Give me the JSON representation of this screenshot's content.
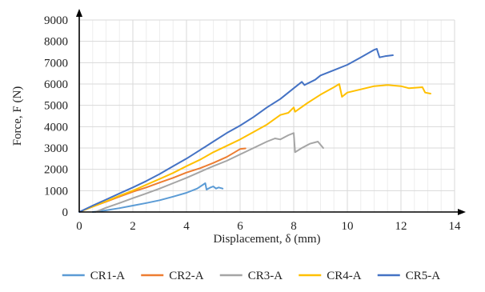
{
  "chart_data": {
    "type": "line",
    "title": "",
    "xlabel": "Displacement, δ (mm)",
    "ylabel": "Force, F (N)",
    "xlim": [
      0,
      14
    ],
    "ylim": [
      0,
      9000
    ],
    "x_ticks": [
      "0",
      "2",
      "4",
      "6",
      "8",
      "10",
      "12",
      "14"
    ],
    "y_ticks": [
      "0",
      "1000",
      "2000",
      "3000",
      "4000",
      "5000",
      "6000",
      "7000",
      "8000",
      "9000"
    ],
    "grid": true,
    "legend_position": "bottom",
    "series": [
      {
        "name": "CR1-A",
        "color": "#5b9bd5",
        "points": [
          [
            0.5,
            0
          ],
          [
            1,
            80
          ],
          [
            1.5,
            180
          ],
          [
            2,
            300
          ],
          [
            2.5,
            420
          ],
          [
            3,
            550
          ],
          [
            3.5,
            720
          ],
          [
            4,
            900
          ],
          [
            4.4,
            1100
          ],
          [
            4.7,
            1350
          ],
          [
            4.75,
            1050
          ],
          [
            4.9,
            1150
          ],
          [
            5,
            1200
          ],
          [
            5.1,
            1100
          ],
          [
            5.2,
            1150
          ],
          [
            5.35,
            1100
          ]
        ]
      },
      {
        "name": "CR2-A",
        "color": "#ed7d31",
        "points": [
          [
            0,
            0
          ],
          [
            0.5,
            250
          ],
          [
            1,
            480
          ],
          [
            1.5,
            720
          ],
          [
            2,
            950
          ],
          [
            2.5,
            1150
          ],
          [
            3,
            1380
          ],
          [
            3.5,
            1600
          ],
          [
            4,
            1850
          ],
          [
            4.5,
            2050
          ],
          [
            5,
            2300
          ],
          [
            5.5,
            2580
          ],
          [
            5.8,
            2800
          ],
          [
            6,
            2950
          ],
          [
            6.2,
            2980
          ]
        ]
      },
      {
        "name": "CR3-A",
        "color": "#a5a5a5",
        "points": [
          [
            0.6,
            0
          ],
          [
            1,
            200
          ],
          [
            1.5,
            420
          ],
          [
            2,
            650
          ],
          [
            2.5,
            870
          ],
          [
            3,
            1100
          ],
          [
            3.5,
            1350
          ],
          [
            4,
            1600
          ],
          [
            4.5,
            1880
          ],
          [
            5,
            2150
          ],
          [
            5.5,
            2400
          ],
          [
            6,
            2700
          ],
          [
            6.5,
            3000
          ],
          [
            7,
            3300
          ],
          [
            7.3,
            3450
          ],
          [
            7.5,
            3400
          ],
          [
            7.8,
            3600
          ],
          [
            8,
            3700
          ],
          [
            8.05,
            2800
          ],
          [
            8.3,
            3000
          ],
          [
            8.6,
            3200
          ],
          [
            8.9,
            3300
          ],
          [
            9.1,
            3000
          ]
        ]
      },
      {
        "name": "CR4-A",
        "color": "#ffc000",
        "points": [
          [
            0,
            0
          ],
          [
            0.5,
            250
          ],
          [
            1,
            500
          ],
          [
            1.5,
            760
          ],
          [
            2,
            1000
          ],
          [
            2.5,
            1280
          ],
          [
            3,
            1550
          ],
          [
            3.5,
            1830
          ],
          [
            4,
            2150
          ],
          [
            4.5,
            2450
          ],
          [
            5,
            2800
          ],
          [
            5.5,
            3100
          ],
          [
            6,
            3400
          ],
          [
            6.5,
            3750
          ],
          [
            7,
            4100
          ],
          [
            7.5,
            4550
          ],
          [
            7.8,
            4650
          ],
          [
            8,
            4900
          ],
          [
            8.05,
            4700
          ],
          [
            8.5,
            5100
          ],
          [
            9,
            5500
          ],
          [
            9.5,
            5850
          ],
          [
            9.7,
            6000
          ],
          [
            9.8,
            5400
          ],
          [
            10,
            5600
          ],
          [
            10.5,
            5750
          ],
          [
            11,
            5900
          ],
          [
            11.5,
            5950
          ],
          [
            12,
            5900
          ],
          [
            12.3,
            5800
          ],
          [
            12.8,
            5850
          ],
          [
            12.9,
            5600
          ],
          [
            13.1,
            5550
          ]
        ]
      },
      {
        "name": "CR5-A",
        "color": "#4472c4",
        "points": [
          [
            0,
            0
          ],
          [
            0.5,
            300
          ],
          [
            1,
            580
          ],
          [
            1.5,
            870
          ],
          [
            2,
            1150
          ],
          [
            2.5,
            1450
          ],
          [
            3,
            1780
          ],
          [
            3.5,
            2150
          ],
          [
            4,
            2500
          ],
          [
            4.5,
            2900
          ],
          [
            5,
            3300
          ],
          [
            5.5,
            3700
          ],
          [
            6,
            4050
          ],
          [
            6.5,
            4450
          ],
          [
            7,
            4900
          ],
          [
            7.5,
            5300
          ],
          [
            8,
            5800
          ],
          [
            8.3,
            6100
          ],
          [
            8.4,
            5950
          ],
          [
            8.8,
            6200
          ],
          [
            9,
            6400
          ],
          [
            9.5,
            6650
          ],
          [
            10,
            6900
          ],
          [
            10.5,
            7250
          ],
          [
            11,
            7600
          ],
          [
            11.1,
            7650
          ],
          [
            11.2,
            7250
          ],
          [
            11.4,
            7300
          ],
          [
            11.7,
            7350
          ]
        ]
      }
    ]
  }
}
